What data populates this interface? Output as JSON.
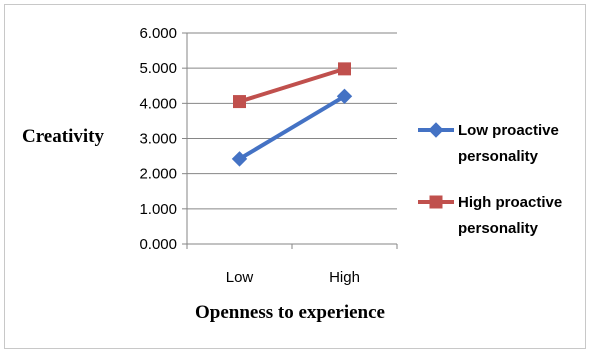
{
  "chart_data": {
    "type": "line",
    "categories": [
      "Low",
      "High"
    ],
    "ylim": [
      0,
      6
    ],
    "yticks": [
      "0.000",
      "1.000",
      "2.000",
      "3.000",
      "4.000",
      "5.000",
      "6.000"
    ],
    "ylabel": "Creativity",
    "xlabel": "Openness to experience",
    "grid": true,
    "legend_position": "right",
    "series": [
      {
        "name": "Low proactive personality",
        "name_lines": [
          "Low proactive",
          "personality"
        ],
        "values": [
          2.42,
          4.2
        ],
        "color": "#4472c4",
        "marker": "diamond"
      },
      {
        "name": "High proactive personality",
        "name_lines": [
          "High proactive",
          "personality"
        ],
        "values": [
          4.05,
          4.98
        ],
        "color": "#c0504d",
        "marker": "square"
      }
    ]
  }
}
